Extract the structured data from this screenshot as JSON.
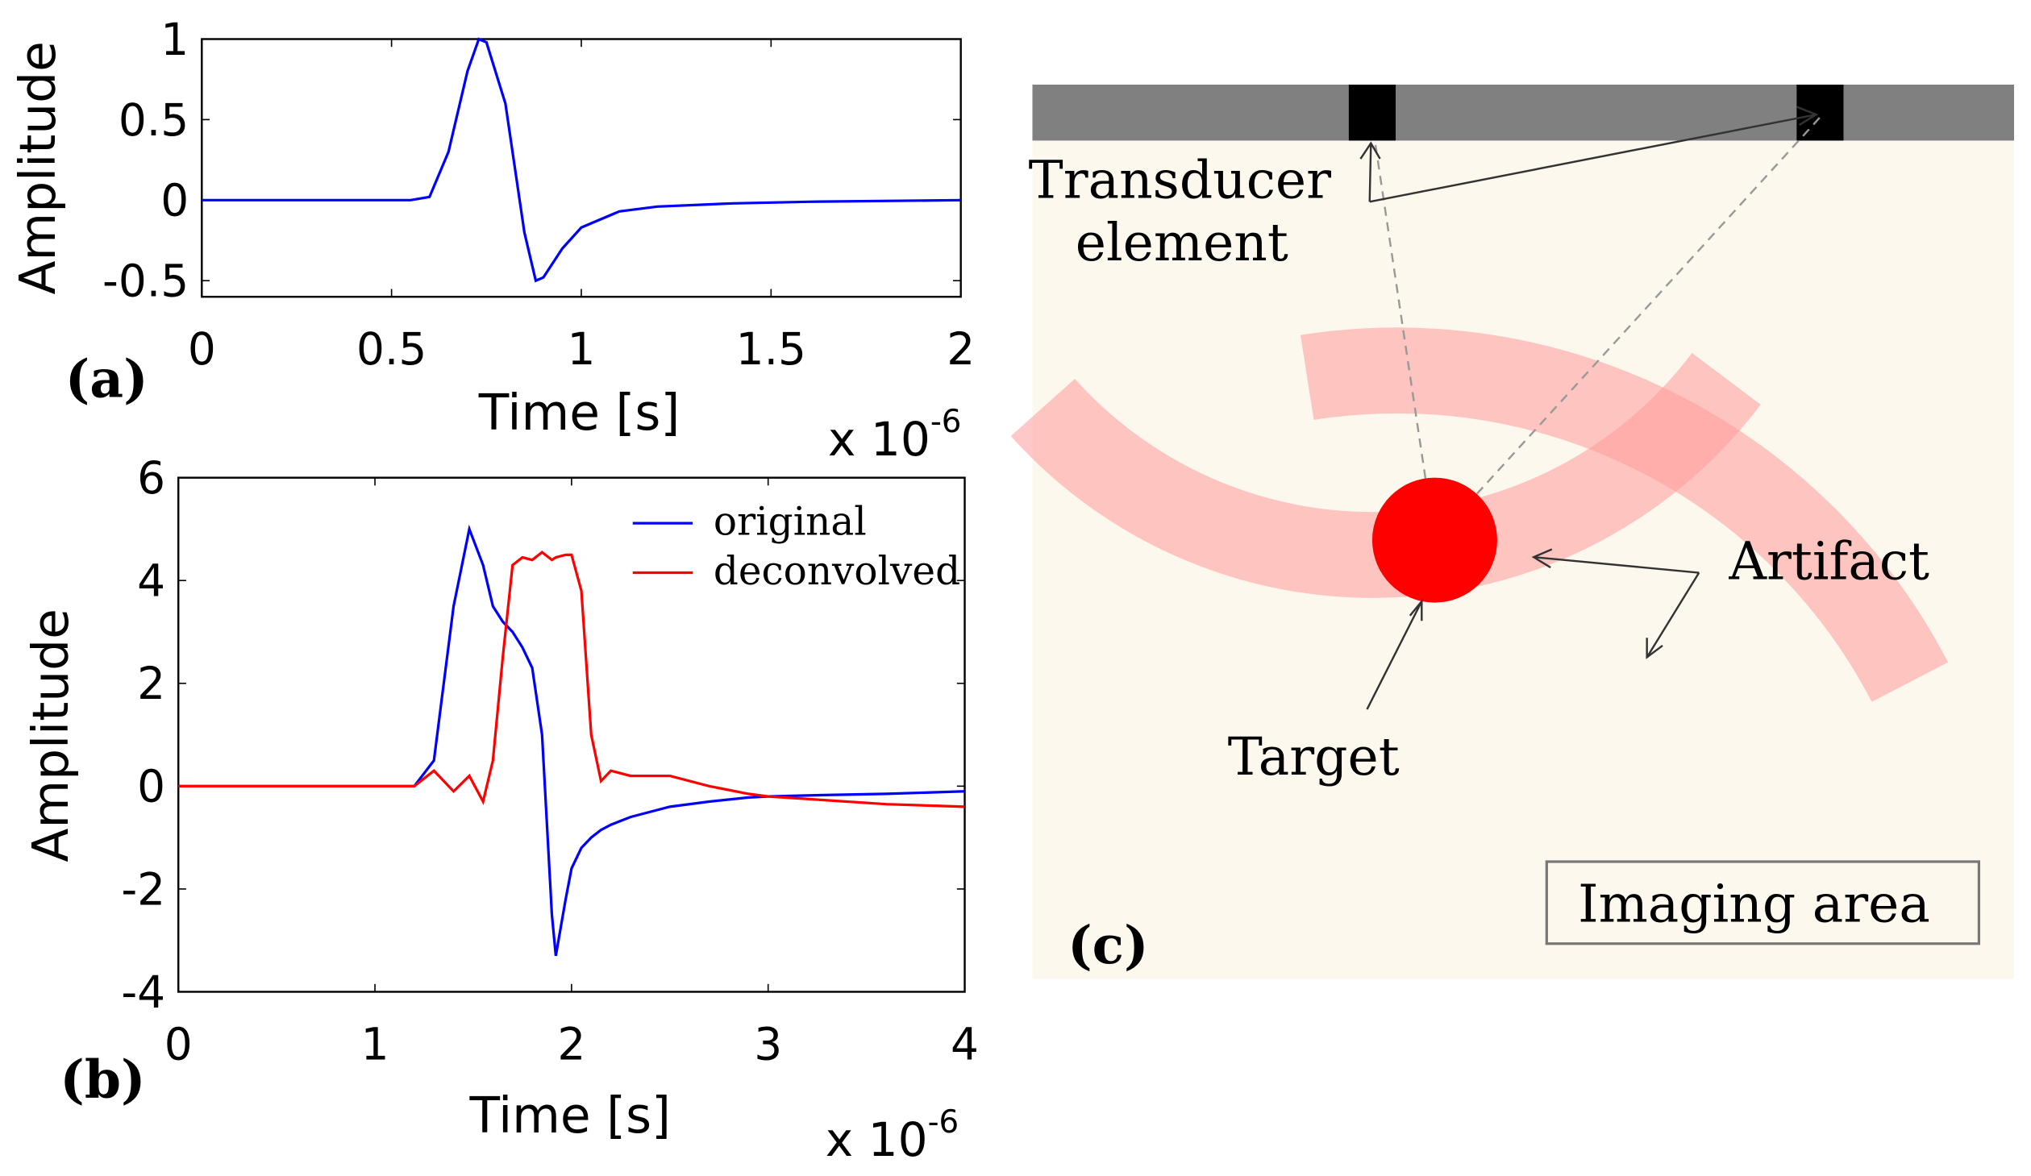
{
  "chart_data": [
    {
      "type": "line",
      "panel_label": "(a)",
      "xlabel": "Time [s]",
      "ylabel": "Amplitude",
      "x_multiplier": {
        "base": "x 10",
        "exponent": "-6"
      },
      "x": [
        0,
        0.5,
        0.55,
        0.6,
        0.65,
        0.7,
        0.73,
        0.75,
        0.8,
        0.85,
        0.88,
        0.9,
        0.95,
        1.0,
        1.1,
        1.2,
        1.4,
        1.6,
        2.0
      ],
      "values": [
        0,
        0,
        0,
        0.02,
        0.3,
        0.8,
        1.0,
        0.98,
        0.6,
        -0.2,
        -0.5,
        -0.48,
        -0.3,
        -0.17,
        -0.07,
        -0.04,
        -0.02,
        -0.01,
        0
      ],
      "color": "#0000ff",
      "xlim": [
        0,
        2
      ],
      "ylim": [
        -0.6,
        1
      ],
      "xticks": [
        0,
        0.5,
        1,
        1.5,
        2
      ],
      "yticks": [
        -0.5,
        0,
        0.5,
        1
      ]
    },
    {
      "type": "line",
      "panel_label": "(b)",
      "xlabel": "Time [s]",
      "ylabel": "Amplitude",
      "x_multiplier": {
        "base": "x 10",
        "exponent": "-6"
      },
      "x": [
        0,
        0.5,
        1.0,
        1.2,
        1.3,
        1.4,
        1.48,
        1.55,
        1.6,
        1.65,
        1.7,
        1.75,
        1.8,
        1.85,
        1.9,
        1.92,
        1.97,
        2.0,
        2.05,
        2.1,
        2.15,
        2.2,
        2.3,
        2.5,
        2.7,
        2.9,
        3.0,
        3.2,
        3.6,
        4.0
      ],
      "series": [
        {
          "name": "original",
          "color": "#0000ff",
          "values": [
            0,
            0,
            0,
            0,
            0.5,
            3.5,
            5,
            4.3,
            3.5,
            3.2,
            3.0,
            2.7,
            2.3,
            1.0,
            -2.5,
            -3.3,
            -2.2,
            -1.6,
            -1.2,
            -1.0,
            -0.85,
            -0.75,
            -0.6,
            -0.4,
            -0.3,
            -0.22,
            -0.2,
            -0.18,
            -0.15,
            -0.1
          ]
        },
        {
          "name": "deconvolved",
          "color": "#ff0000",
          "values": [
            0,
            0,
            0,
            0,
            0.3,
            -0.1,
            0.2,
            -0.3,
            0.5,
            2.5,
            4.3,
            4.45,
            4.4,
            4.55,
            4.4,
            4.45,
            4.5,
            4.5,
            3.8,
            1.0,
            0.1,
            0.3,
            0.2,
            0.2,
            0.0,
            -0.15,
            -0.2,
            -0.25,
            -0.35,
            -0.4
          ]
        }
      ],
      "legend": "upper right",
      "xlim": [
        0,
        4
      ],
      "ylim": [
        -4,
        6
      ],
      "xticks": [
        0,
        1,
        2,
        3,
        4
      ],
      "yticks": [
        -4,
        -2,
        0,
        2,
        4,
        6
      ]
    }
  ],
  "diagram": {
    "panel_label": "(c)",
    "transducer_label": [
      "Transducer",
      "element"
    ],
    "artifact_label": "Artifact",
    "target_label": "Target",
    "imaging_area_label": "Imaging area"
  }
}
